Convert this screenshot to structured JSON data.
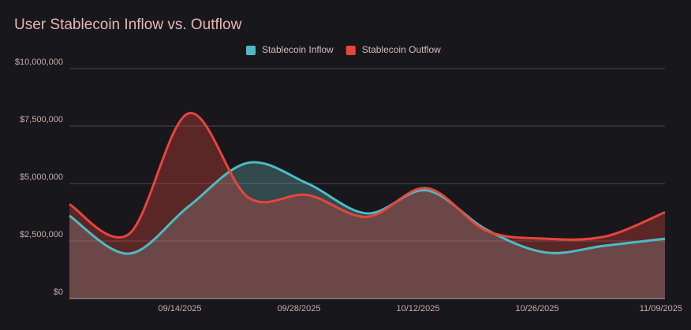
{
  "chart_data": {
    "type": "area",
    "title": "User Stablecoin Inflow vs. Outflow",
    "categories": [
      null,
      null,
      "09/14/2025",
      null,
      "09/28/2025",
      null,
      "10/12/2025",
      null,
      "10/26/2025",
      null,
      "11/09/2025"
    ],
    "series": [
      {
        "name": "Stablecoin Inflow",
        "color": "#4bbcc4",
        "values": [
          3600000,
          1950000,
          4000000,
          5900000,
          5000000,
          3700000,
          4700000,
          3000000,
          2000000,
          2300000,
          2600000
        ]
      },
      {
        "name": "Stablecoin Outflow",
        "color": "#e8453c",
        "values": [
          4100000,
          2800000,
          8050000,
          4400000,
          4500000,
          3550000,
          4800000,
          2950000,
          2600000,
          2700000,
          3750000
        ]
      }
    ],
    "ylim": [
      0,
      10000000
    ],
    "yticks": [
      {
        "value": 0,
        "label": "$0"
      },
      {
        "value": 2500000,
        "label": "$2,500,000"
      },
      {
        "value": 5000000,
        "label": "$5,000,000"
      },
      {
        "value": 7500000,
        "label": "$7,500,000"
      },
      {
        "value": 10000000,
        "label": "$10,000,000"
      }
    ],
    "grid": true,
    "legend": "top"
  }
}
